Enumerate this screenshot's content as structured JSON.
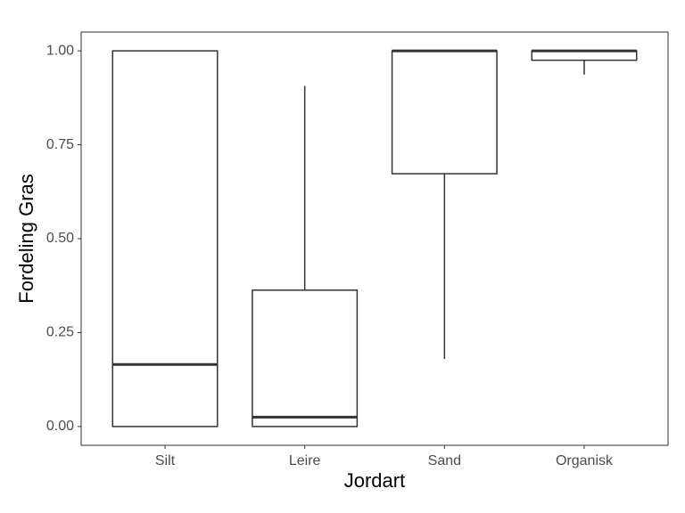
{
  "chart_data": {
    "type": "box",
    "x_label": "Jordart",
    "y_label": "Fordeling Gras",
    "categories": [
      "Silt",
      "Leire",
      "Sand",
      "Organisk"
    ],
    "min": [
      0,
      0,
      0.18,
      0.937
    ],
    "q1": [
      0,
      0,
      0.673,
      0.975
    ],
    "median": [
      0.165,
      0.025,
      1.0,
      1.0
    ],
    "q3": [
      1.0,
      0.363,
      1.0,
      1.0
    ],
    "max": [
      1.0,
      0.907,
      1.0,
      1.0
    ],
    "color": "#333333",
    "ylim": [
      -0.05,
      1.05
    ],
    "yticks": [
      {
        "value": 0,
        "label": "0.00"
      },
      {
        "value": 0.25,
        "label": "0.25"
      },
      {
        "value": 0.5,
        "label": "0.50"
      },
      {
        "value": 0.75,
        "label": "0.75"
      },
      {
        "value": 1,
        "label": "1.00"
      }
    ]
  }
}
